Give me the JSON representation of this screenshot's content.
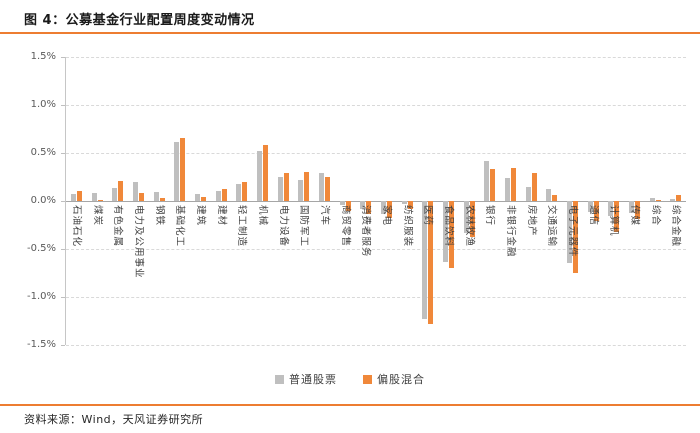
{
  "page": {
    "title": "图 4：公募基金行业配置周度变动情况",
    "source": "资料来源：Wind，天风证券研究所"
  },
  "colors": {
    "accent_orange": "#ED7D31",
    "series_gray": "#BFBFBF",
    "series_orange": "#F0883A",
    "gridline": "#D9D9D9",
    "zero_axis": "#A6A6A6",
    "tick_text": "#595959",
    "category_text": "#3F3F3F"
  },
  "chart_data": {
    "type": "bar",
    "title": "图 4：公募基金行业配置周度变动情况",
    "xlabel": "",
    "ylabel": "",
    "ylim": [
      -1.5,
      1.5
    ],
    "ytick_step": 0.5,
    "ytick_labels": [
      "1.5%",
      "1.0%",
      "0.5%",
      "0.0%",
      "-0.5%",
      "-1.0%",
      "-1.5%"
    ],
    "grid": "horizontal-dashed",
    "legend_position": "bottom",
    "categories": [
      "石油石化",
      "煤炭",
      "有色金属",
      "电力及公用事业",
      "钢铁",
      "基础化工",
      "建筑",
      "建材",
      "轻工制造",
      "机械",
      "电力设备",
      "国防军工",
      "汽车",
      "商贸零售",
      "消费者服务",
      "家电",
      "纺织服装",
      "医药",
      "食品饮料",
      "农林牧渔",
      "银行",
      "非银行金融",
      "房地产",
      "交通运输",
      "电子元器件",
      "通信",
      "计算机",
      "传媒",
      "综合",
      "综合金融"
    ],
    "series": [
      {
        "name": "普通股票",
        "color": "#BFBFBF",
        "values": [
          0.07,
          0.08,
          0.14,
          0.2,
          0.09,
          0.61,
          0.07,
          0.1,
          0.18,
          0.52,
          0.25,
          0.22,
          0.29,
          -0.04,
          -0.08,
          -0.14,
          -0.03,
          -1.23,
          -0.64,
          -0.33,
          0.42,
          0.24,
          0.15,
          0.13,
          -0.65,
          -0.11,
          -0.16,
          -0.13,
          0.03,
          0.02
        ]
      },
      {
        "name": "偏股混合",
        "color": "#F0883A",
        "values": [
          0.1,
          0.01,
          0.21,
          0.08,
          0.03,
          0.66,
          0.04,
          0.12,
          0.2,
          0.58,
          0.29,
          0.3,
          0.25,
          -0.1,
          -0.14,
          -0.18,
          -0.08,
          -1.28,
          -0.7,
          -0.38,
          0.33,
          0.34,
          0.29,
          0.06,
          -0.75,
          -0.21,
          -0.32,
          -0.19,
          0.01,
          0.06
        ]
      }
    ]
  }
}
